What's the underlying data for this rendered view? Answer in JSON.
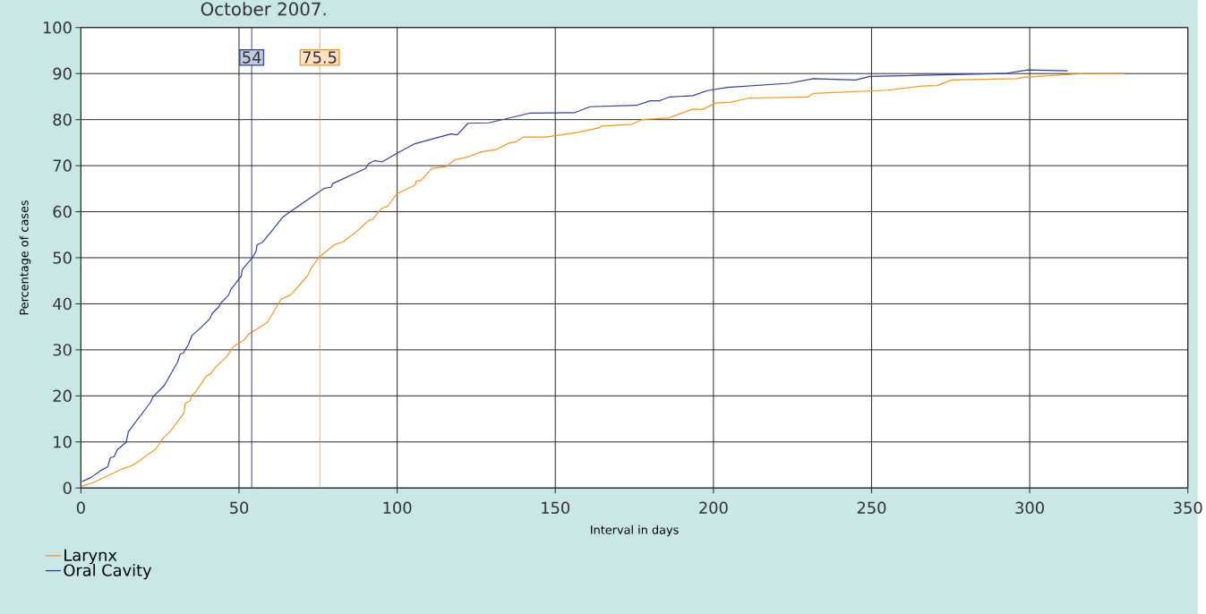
{
  "chart_data": {
    "type": "line",
    "title": "October 2007.",
    "xlabel": "Interval in days",
    "ylabel": "Percentage of cases",
    "xlim": [
      0,
      350
    ],
    "ylim": [
      0,
      100
    ],
    "xticks": [
      0,
      50,
      100,
      150,
      200,
      250,
      300,
      350
    ],
    "yticks": [
      0,
      10,
      20,
      30,
      40,
      50,
      60,
      70,
      80,
      90,
      100
    ],
    "grid": true,
    "legend": "bottom left",
    "marker": "none",
    "line_style": "solid",
    "series": [
      {
        "name": "Larynx",
        "color": "#f7941d",
        "x": [
          0,
          4,
          13.6,
          16,
          18.6,
          21,
          23.6,
          25,
          26,
          28.6,
          32.6,
          33,
          34.6,
          35,
          36,
          39.7,
          41,
          42.7,
          46.2,
          48.2,
          51.7,
          53,
          54.7,
          59,
          63.3,
          66.3,
          69.8,
          71.8,
          72.8,
          75.1,
          80.3,
          82.8,
          87,
          91.2,
          92.2,
          95,
          97,
          99.9,
          105.7,
          106,
          107.4,
          111,
          115.5,
          118,
          122.8,
          126.6,
          131.4,
          135.3,
          137.6,
          139.9,
          147,
          156.8,
          163.7,
          164.7,
          174.3,
          177.3,
          186,
          193.5,
          196.5,
          200.7,
          205.5,
          211.4,
          229.8,
          231.6,
          255,
          266,
          270.7,
          275.3,
          296,
          298,
          317,
          330
        ],
        "values": [
          0.3,
          1.2,
          4.3,
          4.8,
          5.9,
          7.2,
          8.4,
          9.8,
          10.8,
          12.6,
          16.3,
          18.4,
          19,
          20.1,
          20.6,
          24.3,
          24.8,
          26.3,
          28.6,
          30.7,
          32.2,
          33.4,
          34.1,
          36,
          41,
          41.9,
          44.6,
          46.3,
          47.7,
          50,
          52.9,
          53.4,
          55.6,
          58.2,
          58.3,
          60.7,
          61.2,
          63.9,
          65.8,
          66.7,
          66.7,
          69.4,
          69.8,
          71.2,
          72,
          73,
          73.5,
          74.9,
          75.2,
          76.2,
          76.2,
          77.2,
          78.2,
          78.6,
          79,
          80,
          80.4,
          82.3,
          82.2,
          83.6,
          83.8,
          84.7,
          84.9,
          85.7,
          86.4,
          87.3,
          87.4,
          88.6,
          88.9,
          89.2,
          90,
          90
        ]
      },
      {
        "name": "Oral Cavity",
        "color": "#2e3f98",
        "x": [
          0.3,
          3,
          6.3,
          8.5,
          9.3,
          10.5,
          11.5,
          14.3,
          15,
          22,
          22.8,
          26.4,
          30.6,
          31.4,
          32.4,
          34,
          35.1,
          38.2,
          40.7,
          41.5,
          43.7,
          44.2,
          46.7,
          47.4,
          50.7,
          51,
          54.2,
          55.4,
          55.7,
          57.5,
          62.2,
          63.8,
          65.8,
          77,
          79.1,
          79.6,
          90,
          90.9,
          92.9,
          95.2,
          100.7,
          105.3,
          117,
          119,
          122.4,
          129,
          141.8,
          156,
          161,
          175.6,
          180,
          183,
          186,
          193.5,
          198,
          204.5,
          224,
          231.6,
          244.9,
          249.5,
          291.9,
          299.4,
          312
        ],
        "values": [
          1.4,
          2.2,
          3.8,
          4.6,
          6.6,
          6.8,
          8.3,
          9.9,
          12.2,
          18.6,
          19.8,
          22.3,
          27.4,
          29.1,
          29.3,
          31.2,
          33.1,
          35,
          36.7,
          37.9,
          39.4,
          40.1,
          41.9,
          43.1,
          46,
          47.4,
          50,
          51.4,
          52.8,
          53.4,
          57.4,
          58.8,
          59.8,
          65.1,
          65.3,
          66.1,
          69.4,
          70.4,
          71.1,
          70.8,
          73,
          74.7,
          76.9,
          76.7,
          79.2,
          79.3,
          81.4,
          81.5,
          82.8,
          83.1,
          84.1,
          84.1,
          84.9,
          85.2,
          86.3,
          87,
          87.9,
          88.9,
          88.6,
          89.4,
          90,
          90.8,
          90.6
        ]
      }
    ],
    "ref_lines": [
      {
        "axis": "x",
        "value": 54,
        "label": "54",
        "color": "#2e3f98"
      },
      {
        "axis": "x",
        "value": 75.5,
        "label": "75.5",
        "color": "#f7941d"
      }
    ]
  }
}
